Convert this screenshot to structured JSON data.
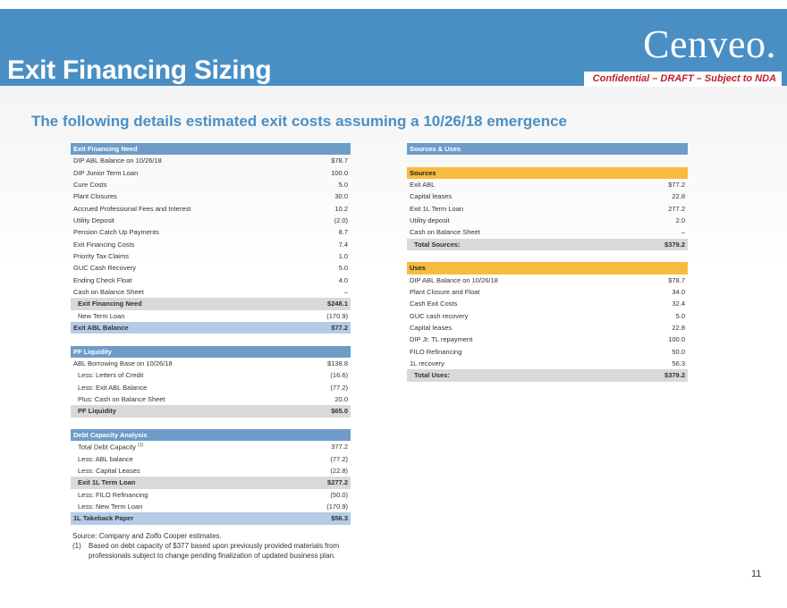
{
  "header": {
    "title": "Exit Financing Sizing",
    "logo": "Cenveo.",
    "confidential": "Confidential – DRAFT – Subject to NDA"
  },
  "subtitle": "The following details estimated exit costs assuming a 10/26/18 emergence",
  "exit_need": {
    "header": "Exit Financing Need",
    "rows": [
      {
        "label": "DIP ABL Balance on 10/26/18",
        "value": "$78.7"
      },
      {
        "label": "DIP Junior Term Loan",
        "value": "100.0"
      },
      {
        "label": "Cure Costs",
        "value": "5.0"
      },
      {
        "label": "Plant Closures",
        "value": "30.0"
      },
      {
        "label": "Accrued Professional Fees and Interest",
        "value": "10.2"
      },
      {
        "label": "Utility Deposit",
        "value": "(2.0)"
      },
      {
        "label": "Pension Catch Up Payments",
        "value": "8.7"
      },
      {
        "label": "Exit Financing Costs",
        "value": "7.4"
      },
      {
        "label": "Priority Tax Claims",
        "value": "1.0"
      },
      {
        "label": "GUC Cash Recovery",
        "value": "5.0"
      },
      {
        "label": "Ending Check Float",
        "value": "4.0"
      },
      {
        "label": "Cash on Balance Sheet",
        "value": "–"
      }
    ],
    "total": {
      "label": "Exit Financing Need",
      "value": "$248.1"
    },
    "new_term_loan": {
      "label": "New Term Loan",
      "value": "(170.9)"
    },
    "abl_balance": {
      "label": "Exit ABL Balance",
      "value": "$77.2"
    }
  },
  "pf_liquidity": {
    "header": "PF Liquidity",
    "base": {
      "label": "ABL Borrowing Base on 10/26/18",
      "value": "$138.8"
    },
    "rows": [
      {
        "label": "Less: Letters of Credit",
        "value": "(16.6)"
      },
      {
        "label": "Less: Exit ABL Balance",
        "value": "(77.2)"
      },
      {
        "label": "Plus: Cash on Balance Sheet",
        "value": "20.0"
      }
    ],
    "total": {
      "label": "PF Liquidity",
      "value": "$65.0"
    }
  },
  "debt_capacity": {
    "header": "Debt Capacity Analysis",
    "total_label": "Total Debt Capacity",
    "total_sup": "(1)",
    "total_value": "377.2",
    "rows": [
      {
        "label": "Less: ABL balance",
        "value": "(77.2)"
      },
      {
        "label": "Less: Capital Leases",
        "value": "(22.8)"
      }
    ],
    "term_loan": {
      "label": "Exit 1L Term Loan",
      "value": "$277.2"
    },
    "rows2": [
      {
        "label": "Less: FILO Refinancing",
        "value": "(50.0)"
      },
      {
        "label": "Less: New Term Loan",
        "value": "(170.9)"
      }
    ],
    "takeback": {
      "label": "1L Takeback Paper",
      "value": "$56.3"
    }
  },
  "sources_uses": {
    "header": "Sources & Uses",
    "sources_header": "Sources",
    "sources": [
      {
        "label": "Exit ABL",
        "value": "$77.2"
      },
      {
        "label": "Capital leases",
        "value": "22.8"
      },
      {
        "label": "Exit 1L Term Loan",
        "value": "277.2"
      },
      {
        "label": "Utility deposit",
        "value": "2.0"
      },
      {
        "label": "Cash on Balance Sheet",
        "value": "–"
      }
    ],
    "sources_total": {
      "label": "Total Sources:",
      "value": "$379.2"
    },
    "uses_header": "Uses",
    "uses": [
      {
        "label": "DIP ABL Balance on 10/26/18",
        "value": "$78.7"
      },
      {
        "label": "Plant Closure and Float",
        "value": "34.0"
      },
      {
        "label": "Cash Exit Costs",
        "value": "32.4"
      },
      {
        "label": "GUC cash recovery",
        "value": "5.0"
      },
      {
        "label": "Capital leases",
        "value": "22.8"
      },
      {
        "label": "DIP Jr. TL repayment",
        "value": "100.0"
      },
      {
        "label": "FILO Refinancing",
        "value": "50.0"
      },
      {
        "label": "1L recovery",
        "value": "56.3"
      }
    ],
    "uses_total": {
      "label": "Total Uses:",
      "value": "$379.2"
    }
  },
  "footer": {
    "source": "Source: Company and Zolfo Cooper estimates.",
    "note_num": "(1)",
    "note_text": "Based on debt capacity of $377 based upon previously provided materials from professionals subject to change pending finalization of updated business plan.",
    "page_number": "11"
  }
}
